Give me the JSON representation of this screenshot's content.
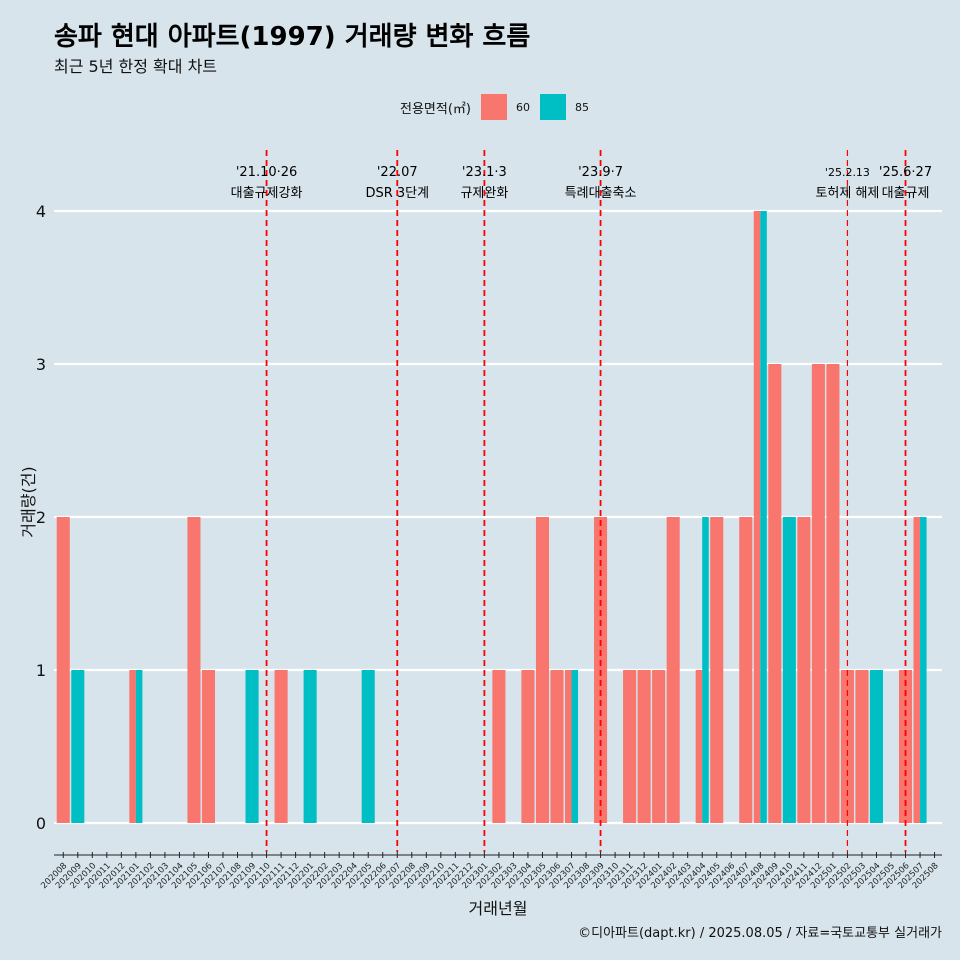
{
  "chart_data": {
    "type": "bar",
    "title": "송파 현대 아파트(1997) 거래량 변화 흐름",
    "subtitle": "최근 5년 한정 확대 차트",
    "xlabel": "거래년월",
    "ylabel": "거래량(건)",
    "ylim": [
      0,
      4
    ],
    "yticks": [
      "0",
      "1",
      "2",
      "3",
      "4"
    ],
    "legend": {
      "title": "전용면적(㎡)",
      "position": "top"
    },
    "caption": "©디아파트(dapt.kr) / 2025.08.05 / 자료=국토교통부 실거래가",
    "categories": [
      "202008",
      "202009",
      "202010",
      "202011",
      "202012",
      "202101",
      "202102",
      "202103",
      "202104",
      "202105",
      "202106",
      "202107",
      "202108",
      "202109",
      "202110",
      "202111",
      "202112",
      "202201",
      "202202",
      "202203",
      "202204",
      "202205",
      "202206",
      "202207",
      "202208",
      "202209",
      "202210",
      "202211",
      "202212",
      "202301",
      "202302",
      "202303",
      "202304",
      "202305",
      "202306",
      "202307",
      "202308",
      "202309",
      "202310",
      "202311",
      "202312",
      "202401",
      "202402",
      "202403",
      "202404",
      "202405",
      "202406",
      "202407",
      "202408",
      "202409",
      "202410",
      "202411",
      "202412",
      "202501",
      "202502",
      "202503",
      "202504",
      "202505",
      "202506",
      "202507",
      "202508"
    ],
    "series": [
      {
        "name": "60",
        "color": "#f8766d",
        "values": [
          2,
          0,
          0,
          0,
          0,
          1,
          0,
          0,
          0,
          2,
          1,
          0,
          0,
          0,
          0,
          1,
          0,
          0,
          0,
          0,
          0,
          0,
          0,
          0,
          0,
          0,
          0,
          0,
          0,
          0,
          1,
          0,
          1,
          2,
          1,
          1,
          0,
          2,
          0,
          1,
          1,
          1,
          2,
          0,
          1,
          2,
          0,
          2,
          4,
          3,
          0,
          2,
          3,
          3,
          1,
          1,
          0,
          0,
          1,
          2,
          0
        ]
      },
      {
        "name": "85",
        "color": "#00bfc4",
        "values": [
          0,
          1,
          0,
          0,
          0,
          1,
          0,
          0,
          0,
          0,
          0,
          0,
          0,
          1,
          0,
          0,
          0,
          1,
          0,
          0,
          0,
          1,
          0,
          0,
          0,
          0,
          0,
          0,
          0,
          0,
          0,
          0,
          0,
          0,
          0,
          1,
          0,
          0,
          0,
          0,
          0,
          0,
          0,
          0,
          2,
          0,
          0,
          0,
          4,
          0,
          2,
          0,
          0,
          0,
          0,
          0,
          1,
          0,
          0,
          2,
          0
        ]
      }
    ],
    "annotations": [
      {
        "at": "202110",
        "date": "'21.10·26",
        "text": "대출규제강화"
      },
      {
        "at": "202207",
        "date": "'22.07",
        "text": "DSR 3단계"
      },
      {
        "at": "202301",
        "date": "'23.1·3",
        "text": "규제완화"
      },
      {
        "at": "202309",
        "date": "'23.9·7",
        "text": "특례대출축소"
      },
      {
        "at": "202502",
        "date": "'25.2.13",
        "text": "토허제 해제"
      },
      {
        "at": "202506",
        "date": "'25.6·27",
        "text": "대출규제"
      }
    ],
    "grid": true
  }
}
